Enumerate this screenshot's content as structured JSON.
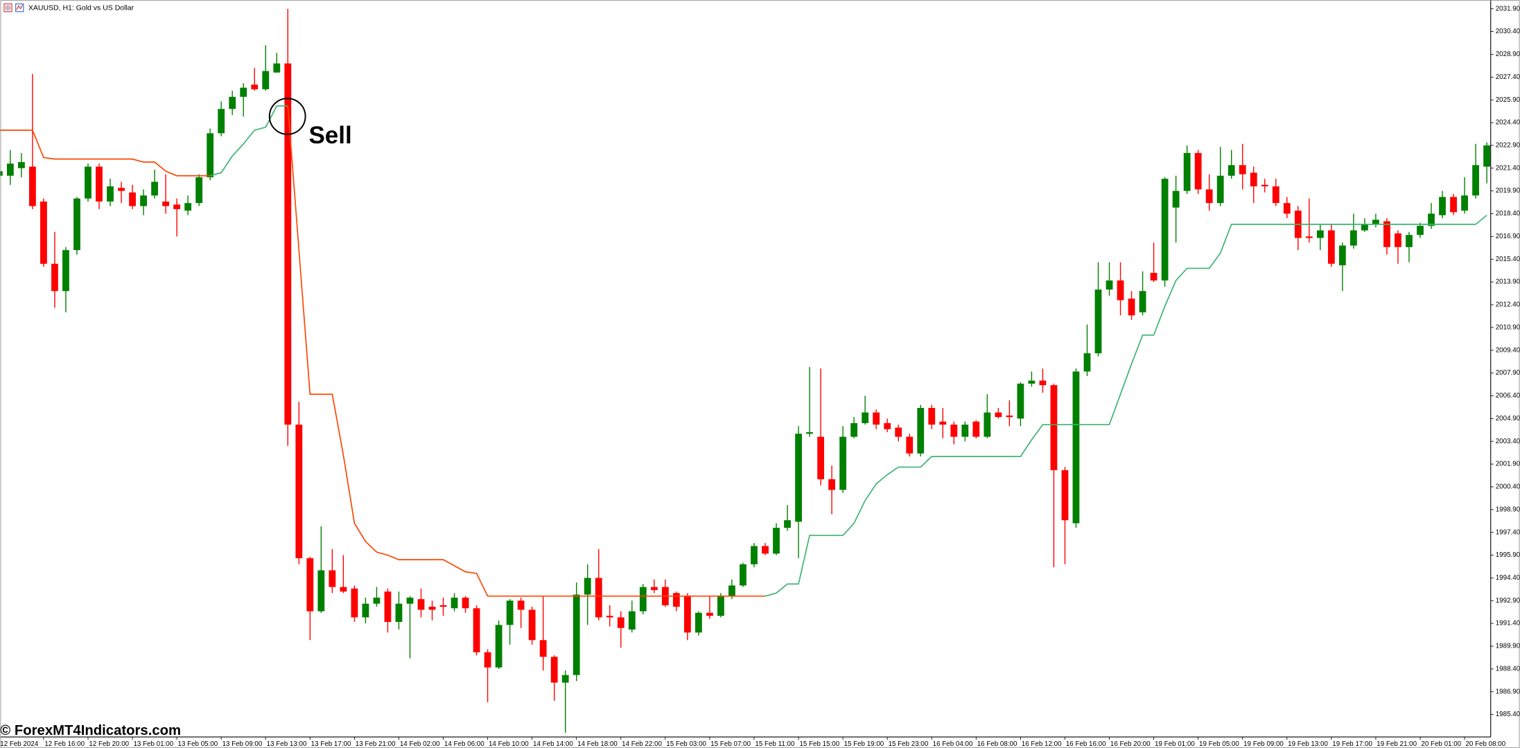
{
  "chart_data": {
    "type": "candlestick",
    "title": "XAUUSD, H1:  Gold vs US Dollar",
    "up_color": "#008000",
    "down_color": "#ff0000",
    "ylim": [
      1983.92,
      2032.48
    ],
    "yticks": [
      {
        "value": 2031.9,
        "label": "2031.90"
      },
      {
        "value": 2030.4,
        "label": "2030.40"
      },
      {
        "value": 2028.9,
        "label": "2028.90"
      },
      {
        "value": 2027.4,
        "label": "2027.40"
      },
      {
        "value": 2025.9,
        "label": "2025.90"
      },
      {
        "value": 2024.4,
        "label": "2024.40"
      },
      {
        "value": 2022.9,
        "label": "2022.90"
      },
      {
        "value": 2021.4,
        "label": "2021.40"
      },
      {
        "value": 2019.9,
        "label": "2019.90"
      },
      {
        "value": 2018.4,
        "label": "2018.40"
      },
      {
        "value": 2016.9,
        "label": "2016.90"
      },
      {
        "value": 2015.4,
        "label": "2015.40"
      },
      {
        "value": 2013.9,
        "label": "2013.90"
      },
      {
        "value": 2012.4,
        "label": "2012.40"
      },
      {
        "value": 2010.9,
        "label": "2010.90"
      },
      {
        "value": 2009.4,
        "label": "2009.40"
      },
      {
        "value": 2007.9,
        "label": "2007.90"
      },
      {
        "value": 2006.4,
        "label": "2006.40"
      },
      {
        "value": 2004.9,
        "label": "2004.90"
      },
      {
        "value": 2003.4,
        "label": "2003.40"
      },
      {
        "value": 2001.9,
        "label": "2001.90"
      },
      {
        "value": 2000.4,
        "label": "2000.40"
      },
      {
        "value": 1998.9,
        "label": "1998.90"
      },
      {
        "value": 1997.4,
        "label": "1997.40"
      },
      {
        "value": 1995.9,
        "label": "1995.90"
      },
      {
        "value": 1994.4,
        "label": "1994.40"
      },
      {
        "value": 1992.9,
        "label": "1992.90"
      },
      {
        "value": 1991.4,
        "label": "1991.40"
      },
      {
        "value": 1989.9,
        "label": "1989.90"
      },
      {
        "value": 1988.4,
        "label": "1988.40"
      },
      {
        "value": 1986.9,
        "label": "1986.90"
      },
      {
        "value": 1985.4,
        "label": "1985.40"
      }
    ],
    "categories": [
      "12 Feb 2024",
      null,
      null,
      null,
      "12 Feb 16:00",
      null,
      null,
      null,
      "12 Feb 20:00",
      null,
      null,
      null,
      "13 Feb 01:00",
      null,
      null,
      null,
      "13 Feb 05:00",
      null,
      null,
      null,
      "13 Feb 09:00",
      null,
      null,
      null,
      "13 Feb 13:00",
      null,
      null,
      null,
      "13 Feb 17:00",
      null,
      null,
      null,
      "13 Feb 21:00",
      null,
      null,
      null,
      "14 Feb 02:00",
      null,
      null,
      null,
      "14 Feb 06:00",
      null,
      null,
      null,
      "14 Feb 10:00",
      null,
      null,
      null,
      "14 Feb 14:00",
      null,
      null,
      null,
      "14 Feb 18:00",
      null,
      null,
      null,
      "14 Feb 22:00",
      null,
      null,
      null,
      "15 Feb 03:00",
      null,
      null,
      null,
      "15 Feb 07:00",
      null,
      null,
      null,
      "15 Feb 11:00",
      null,
      null,
      null,
      "15 Feb 15:00",
      null,
      null,
      null,
      "15 Feb 19:00",
      null,
      null,
      null,
      "15 Feb 23:00",
      null,
      null,
      null,
      "16 Feb 04:00",
      null,
      null,
      null,
      "16 Feb 08:00",
      null,
      null,
      null,
      "16 Feb 12:00",
      null,
      null,
      null,
      "16 Feb 16:00",
      null,
      null,
      null,
      "16 Feb 20:00",
      null,
      null,
      null,
      "19 Feb 01:00",
      null,
      null,
      null,
      "19 Feb 05:00",
      null,
      null,
      null,
      "19 Feb 09:00",
      null,
      null,
      null,
      "19 Feb 13:00",
      null,
      null,
      null,
      "19 Feb 17:00",
      null,
      null,
      null,
      "19 Feb 21:00",
      null,
      null,
      null,
      "20 Feb 01:00",
      null,
      null,
      null,
      "20 Feb 08:00",
      null,
      null
    ],
    "open": [
      2020.9,
      2020.9,
      2021.4,
      2021.5,
      2019.2,
      2015.1,
      2013.3,
      2016.0,
      2019.4,
      2021.5,
      2019.2,
      2020.1,
      2019.8,
      2018.9,
      2019.6,
      2019.2,
      2019.0,
      2018.6,
      2019.1,
      2020.8,
      2023.7,
      2025.3,
      2026.1,
      2026.9,
      2026.6,
      2027.7,
      2028.3,
      2004.5,
      1995.7,
      1992.2,
      1994.9,
      1993.8,
      1993.7,
      1991.8,
      1992.7,
      1993.5,
      1991.5,
      1992.7,
      1993.0,
      1992.5,
      1992.6,
      1992.4,
      1993.1,
      1992.4,
      1989.5,
      1988.5,
      1991.3,
      1992.9,
      1992.3,
      1990.3,
      1989.2,
      1987.5,
      1988.0,
      1993.3,
      1994.4,
      1991.9,
      1991.8,
      1991.0,
      1992.2,
      1993.8,
      1993.8,
      1993.4,
      1993.2,
      1990.8,
      1992.1,
      1991.9,
      1993.2,
      1993.9,
      1995.3,
      1996.5,
      1996.0,
      1997.7,
      1998.1,
      2003.9,
      2003.7,
      2000.9,
      2000.2,
      2003.7,
      2004.6,
      2005.3,
      2004.6,
      2004.3,
      2003.7,
      2002.6,
      2005.6,
      2004.7,
      2004.5,
      2003.7,
      2004.7,
      2003.7,
      2005.3,
      2005.1,
      2004.9,
      2007.2,
      2007.4,
      2007.1,
      2001.5,
      1998.0,
      2008.0,
      2009.2,
      2013.4,
      2014.0,
      2012.8,
      2011.9,
      2014.5,
      2014.0,
      2018.8,
      2019.9,
      2022.4,
      2020.0,
      2019.1,
      2020.9,
      2021.6,
      2021.1,
      2020.3,
      2020.2,
      2019.1,
      2018.6,
      2016.9,
      2016.8,
      2017.3,
      2015.0,
      2016.3,
      2017.3,
      2017.7,
      2017.9,
      2017.1,
      2016.2,
      2017.0,
      2017.6,
      2018.3,
      2019.5,
      2018.6,
      2019.6,
      2021.5
    ],
    "high": [
      2021.6,
      2022.6,
      2022.4,
      2027.6,
      2019.4,
      2017.2,
      2016.2,
      2019.5,
      2021.7,
      2021.7,
      2020.7,
      2020.5,
      2020.3,
      2020.0,
      2021.3,
      2021.0,
      2019.4,
      2019.6,
      2021.0,
      2024.0,
      2025.8,
      2026.5,
      2027.0,
      2028.0,
      2029.5,
      2029.0,
      2031.9,
      2006.0,
      1995.8,
      1997.8,
      1996.3,
      1995.9,
      1993.9,
      1993.1,
      1993.8,
      1993.7,
      1993.5,
      1993.2,
      1993.7,
      1992.9,
      1993.1,
      1993.4,
      1993.2,
      1992.6,
      1989.7,
      1991.6,
      1993.0,
      1993.1,
      1992.5,
      1993.2,
      1989.3,
      1988.3,
      1994.1,
      1995.3,
      1996.3,
      1992.6,
      1992.2,
      1992.9,
      1994.0,
      1994.3,
      1994.3,
      1993.5,
      1993.4,
      1992.2,
      1993.2,
      1993.4,
      1994.3,
      1995.4,
      1996.7,
      1996.7,
      1998.0,
      1999.2,
      2004.4,
      2008.3,
      2008.2,
      2001.8,
      2004.4,
      2005.0,
      2006.4,
      2005.5,
      2004.9,
      2004.5,
      2003.9,
      2005.8,
      2005.8,
      2005.6,
      2004.7,
      2004.7,
      2004.8,
      2006.5,
      2005.6,
      2006.1,
      2007.3,
      2008.0,
      2008.2,
      2007.2,
      2001.7,
      2008.2,
      2011.1,
      2015.2,
      2015.2,
      2015.2,
      2013.3,
      2014.6,
      2016.5,
      2020.8,
      2020.9,
      2022.9,
      2022.6,
      2021.0,
      2022.8,
      2022.6,
      2023.0,
      2021.5,
      2020.7,
      2020.7,
      2019.5,
      2018.9,
      2019.4,
      2017.7,
      2017.7,
      2016.5,
      2018.4,
      2018.1,
      2018.4,
      2018.1,
      2017.3,
      2017.2,
      2017.8,
      2019.1,
      2019.9,
      2019.7,
      2020.8,
      2023.0,
      2023.1
    ],
    "low": [
      2020.5,
      2020.3,
      2020.8,
      2018.7,
      2014.9,
      2012.2,
      2011.9,
      2015.7,
      2019.2,
      2018.7,
      2018.9,
      2019.1,
      2018.7,
      2018.3,
      2019.4,
      2018.4,
      2016.9,
      2018.3,
      2018.9,
      2020.6,
      2023.5,
      2024.9,
      2024.8,
      2026.5,
      2026.5,
      2027.7,
      2003.1,
      1995.3,
      1990.3,
      1992.1,
      1993.4,
      1993.4,
      1991.5,
      1991.4,
      1992.5,
      1990.8,
      1991.0,
      1989.1,
      1991.8,
      1991.6,
      1991.9,
      1992.2,
      1992.1,
      1989.3,
      1986.2,
      1988.4,
      1990.0,
      1991.1,
      1990.0,
      1988.3,
      1986.3,
      1984.2,
      1987.6,
      1991.3,
      1991.6,
      1991.2,
      1989.8,
      1990.8,
      1992.0,
      1993.4,
      1992.5,
      1992.2,
      1990.3,
      1990.6,
      1991.7,
      1991.8,
      1993.0,
      1993.8,
      1995.1,
      1995.9,
      1995.9,
      1997.5,
      1995.7,
      2003.7,
      2000.5,
      1998.6,
      2000.0,
      2003.6,
      2004.5,
      2004.2,
      2004.0,
      2003.4,
      2002.4,
      2002.4,
      2004.2,
      2003.6,
      2003.2,
      2003.4,
      2003.6,
      2003.6,
      2004.9,
      2004.4,
      2004.4,
      2007.0,
      2006.6,
      1995.1,
      1995.3,
      1997.7,
      2007.7,
      2009.0,
      2013.0,
      2011.7,
      2011.4,
      2011.7,
      2013.9,
      2013.6,
      2016.5,
      2019.7,
      2019.7,
      2018.6,
      2018.9,
      2020.7,
      2020.0,
      2019.1,
      2019.8,
      2018.9,
      2018.1,
      2016.0,
      2016.5,
      2016.0,
      2014.9,
      2013.3,
      2016.1,
      2017.2,
      2017.5,
      2015.7,
      2015.1,
      2015.2,
      2016.8,
      2017.4,
      2018.1,
      2018.3,
      2018.4,
      2019.4,
      2020.4
    ],
    "close": [
      2021.2,
      2021.7,
      2021.8,
      2018.9,
      2015.1,
      2013.3,
      2016.0,
      2019.4,
      2021.5,
      2019.2,
      2020.2,
      2019.9,
      2018.9,
      2019.6,
      2020.5,
      2018.9,
      2018.7,
      2019.1,
      2020.8,
      2023.7,
      2025.3,
      2026.1,
      2026.7,
      2026.6,
      2027.8,
      2028.3,
      2004.5,
      1995.7,
      1992.2,
      1994.9,
      1993.8,
      1993.5,
      1991.8,
      1992.7,
      1993.1,
      1991.5,
      1992.7,
      1993.1,
      1992.3,
      1992.3,
      1992.5,
      1993.1,
      1992.4,
      1989.5,
      1988.5,
      1991.3,
      1992.9,
      1992.3,
      1990.3,
      1989.2,
      1987.5,
      1988.0,
      1993.3,
      1994.4,
      1991.8,
      1991.8,
      1991.1,
      1992.2,
      1993.8,
      1993.6,
      1992.6,
      1992.5,
      1990.8,
      1992.1,
      1991.9,
      1993.2,
      1993.9,
      1995.3,
      1996.5,
      1996.0,
      1997.7,
      1998.2,
      2003.9,
      2004.0,
      2000.9,
      2000.2,
      2003.7,
      2004.6,
      2005.3,
      2004.5,
      2004.2,
      2003.7,
      2002.6,
      2005.6,
      2004.5,
      2004.5,
      2003.7,
      2004.5,
      2003.7,
      2005.3,
      2005.0,
      2005.0,
      2007.2,
      2007.4,
      2007.1,
      2001.5,
      1998.2,
      2008.0,
      2009.2,
      2013.4,
      2014.0,
      2012.7,
      2011.7,
      2013.3,
      2014.0,
      2020.7,
      2019.9,
      2022.4,
      2020.0,
      2019.1,
      2020.9,
      2021.6,
      2021.0,
      2020.2,
      2020.2,
      2019.1,
      2018.4,
      2016.8,
      2016.8,
      2017.3,
      2015.1,
      2016.3,
      2017.3,
      2017.7,
      2018.0,
      2016.2,
      2016.2,
      2017.0,
      2017.6,
      2018.4,
      2019.5,
      2018.5,
      2019.6,
      2021.6,
      2022.9
    ],
    "lines": [
      {
        "color": "#ff4500",
        "values": [
          2023.9,
          2023.9,
          2023.9,
          2023.9,
          2022.1,
          2022.0,
          2022.0,
          2022.0,
          2022.0,
          2022.0,
          2022.0,
          2022.0,
          2022.0,
          2021.8,
          2021.8,
          2021.2,
          2020.9,
          2020.9,
          2020.9,
          2020.9,
          null,
          null,
          null,
          null,
          null,
          null,
          2025.5,
          2016.0,
          2006.5,
          2006.5,
          2006.5,
          2002.5,
          1998.0,
          1996.8,
          1996.1,
          1995.9,
          1995.6,
          1995.6,
          1995.6,
          1995.6,
          1995.6,
          1995.2,
          1994.8,
          1994.7,
          1993.2,
          1993.2,
          1993.2,
          1993.2,
          1993.2,
          1993.2,
          1993.2,
          1993.2,
          1993.2,
          1993.2,
          1993.2,
          1993.2,
          1993.2,
          1993.2,
          1993.2,
          1993.2,
          1993.2,
          1993.2,
          1993.2,
          1993.2,
          1993.2,
          1993.2,
          1993.2,
          1993.2,
          1993.2,
          1993.2,
          null,
          null,
          null,
          null,
          null,
          null,
          null,
          null,
          null,
          null,
          null,
          null,
          null,
          null,
          null,
          null,
          null,
          null,
          null,
          null,
          null,
          null,
          null,
          null,
          null,
          null,
          null,
          null,
          null,
          null,
          null,
          null,
          null,
          null,
          null,
          null,
          null,
          null,
          null,
          null,
          null,
          null,
          null,
          null,
          null,
          null,
          null,
          null,
          null,
          null,
          null,
          null,
          null,
          null,
          null,
          null,
          null,
          null,
          null,
          null,
          null,
          null,
          null,
          null,
          null
        ]
      },
      {
        "color": "#3cb371",
        "values": [
          null,
          null,
          null,
          null,
          null,
          null,
          null,
          null,
          null,
          null,
          null,
          null,
          null,
          null,
          null,
          null,
          null,
          null,
          null,
          2020.9,
          2021.1,
          2022.2,
          2023.0,
          2023.9,
          2024.1,
          2025.5,
          2025.5,
          null,
          null,
          null,
          null,
          null,
          null,
          null,
          null,
          null,
          null,
          null,
          null,
          null,
          null,
          null,
          null,
          null,
          null,
          null,
          null,
          null,
          null,
          null,
          null,
          null,
          null,
          null,
          null,
          null,
          null,
          null,
          null,
          null,
          null,
          null,
          null,
          null,
          null,
          null,
          null,
          null,
          null,
          1993.2,
          1993.4,
          1994.0,
          1994.0,
          1997.2,
          1997.2,
          1997.2,
          1997.2,
          1998.0,
          1999.5,
          2000.6,
          2001.2,
          2001.7,
          2001.7,
          2001.7,
          2002.4,
          2002.4,
          2002.4,
          2002.4,
          2002.4,
          2002.4,
          2002.4,
          2002.4,
          2002.4,
          2003.5,
          2004.5,
          2004.5,
          2004.5,
          2004.5,
          2004.5,
          2004.5,
          2004.5,
          2006.5,
          2008.5,
          2010.4,
          2010.4,
          2012.3,
          2014.0,
          2014.8,
          2014.8,
          2014.8,
          2015.8,
          2017.7,
          2017.7,
          2017.7,
          2017.7,
          2017.7,
          2017.7,
          2017.7,
          2017.7,
          2017.7,
          2017.7,
          2017.7,
          2017.7,
          2017.7,
          2017.7,
          2017.7,
          2017.7,
          2017.7,
          2017.7,
          2017.7,
          2017.7,
          2017.7,
          2017.7,
          2017.7,
          2018.3
        ]
      }
    ],
    "annotations": [
      {
        "text": "Sell"
      }
    ],
    "watermark": "© ForexMT4Indicators.com"
  }
}
